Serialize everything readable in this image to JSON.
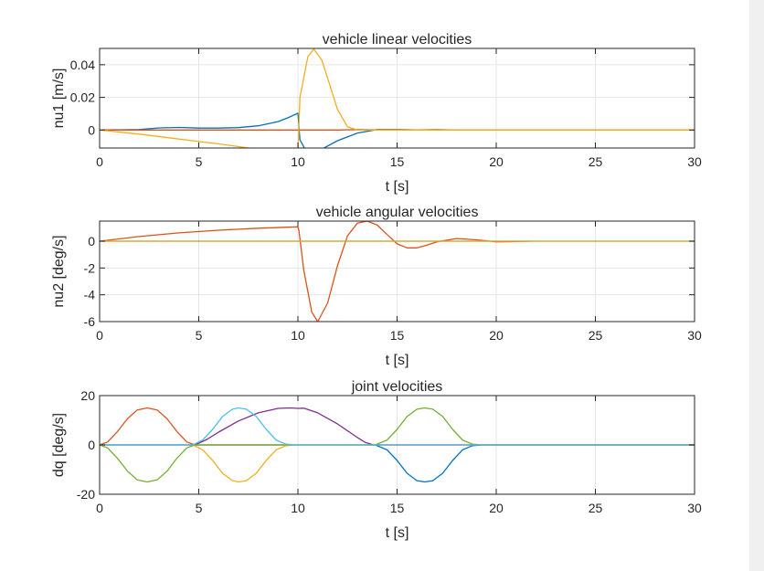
{
  "figure": {
    "background": "#ffffff",
    "window_background": "#f0f0f0",
    "axis_color": "#262626",
    "grid_color": "#e6e6e6"
  },
  "chart_data": [
    {
      "type": "line",
      "title": "vehicle linear velocities",
      "xlabel": "t [s]",
      "ylabel": "nu1 [m/s]",
      "xlim": [
        0,
        30
      ],
      "ylim": [
        -0.011,
        0.05
      ],
      "xticks": [
        0,
        5,
        10,
        15,
        20,
        25,
        30
      ],
      "xtick_labels": [
        "0",
        "5",
        "10",
        "15",
        "20",
        "25",
        "30"
      ],
      "yticks": [
        0,
        0.02,
        0.04
      ],
      "ytick_labels": [
        "0",
        "0.02",
        "0.04"
      ],
      "grid": true,
      "series": [
        {
          "color": "#0072BD",
          "x": [
            0,
            2,
            3,
            4,
            5,
            6,
            7,
            8,
            9,
            9.5,
            10,
            10.1,
            10.5,
            11,
            12,
            13,
            14,
            15,
            16,
            30
          ],
          "y": [
            0,
            0.0003,
            0.0013,
            0.0016,
            0.0012,
            0.0012,
            0.0015,
            0.0026,
            0.0052,
            0.0075,
            0.0103,
            -0.006,
            -0.0148,
            -0.013,
            -0.0065,
            -0.0018,
            0.0003,
            0.0003,
            0,
            0
          ]
        },
        {
          "color": "#D95319",
          "x": [
            0,
            12,
            13,
            14,
            15,
            16,
            17,
            18,
            30
          ],
          "y": [
            0,
            0,
            0.0003,
            0.0002,
            0.0003,
            0.0001,
            0.0003,
            0,
            0
          ]
        },
        {
          "color": "#EDB120",
          "x": [
            0,
            2,
            4,
            6,
            8,
            9,
            10,
            10.1,
            10.5,
            10.8,
            11.2,
            11.6,
            12,
            12.5,
            13,
            30
          ],
          "y": [
            0,
            -0.0025,
            -0.0055,
            -0.0085,
            -0.0118,
            -0.0135,
            -0.0148,
            0.02,
            0.045,
            0.0495,
            0.043,
            0.028,
            0.0125,
            0.002,
            0,
            0
          ]
        }
      ]
    },
    {
      "type": "line",
      "title": "vehicle angular velocities",
      "xlabel": "t [s]",
      "ylabel": "nu2 [deg/s]",
      "xlim": [
        0,
        30
      ],
      "ylim": [
        -6,
        1.5
      ],
      "xticks": [
        0,
        5,
        10,
        15,
        20,
        25,
        30
      ],
      "xtick_labels": [
        "0",
        "5",
        "10",
        "15",
        "20",
        "25",
        "30"
      ],
      "yticks": [
        -6,
        -4,
        -2,
        0
      ],
      "ytick_labels": [
        "-6",
        "-4",
        "-2",
        "0"
      ],
      "grid": true,
      "series": [
        {
          "color": "#0072BD",
          "x": [
            0,
            30
          ],
          "y": [
            0,
            0
          ]
        },
        {
          "color": "#D95319",
          "x": [
            0,
            2,
            4,
            6,
            8,
            10,
            10.05,
            10.3,
            10.7,
            11,
            11.5,
            12,
            12.5,
            13,
            13.5,
            14,
            14.5,
            15,
            15.5,
            16,
            16.5,
            17,
            18,
            19,
            20,
            21,
            21.7
          ],
          "y": [
            0,
            0.35,
            0.62,
            0.82,
            0.97,
            1.07,
            0.8,
            -2.2,
            -5.3,
            -6,
            -4.6,
            -1.8,
            0.4,
            1.35,
            1.5,
            1.2,
            0.5,
            -0.2,
            -0.5,
            -0.5,
            -0.3,
            -0.05,
            0.2,
            0.1,
            -0.05,
            -0.02,
            0
          ]
        },
        {
          "color": "#EDB120",
          "x": [
            0,
            30
          ],
          "y": [
            0,
            0
          ]
        }
      ]
    },
    {
      "type": "line",
      "title": "joint velocities",
      "xlabel": "t [s]",
      "ylabel": "dq [deg/s]",
      "xlim": [
        0,
        30
      ],
      "ylim": [
        -20,
        20
      ],
      "xticks": [
        0,
        5,
        10,
        15,
        20,
        25,
        30
      ],
      "xtick_labels": [
        "0",
        "5",
        "10",
        "15",
        "20",
        "25",
        "30"
      ],
      "yticks": [
        -20,
        0,
        20
      ],
      "ytick_labels": [
        "-20",
        "0",
        "20"
      ],
      "grid": true,
      "series": [
        {
          "color": "#0072BD",
          "x": [
            0,
            13.9,
            14.5,
            15,
            15.5,
            16,
            16.4,
            16.8,
            17.3,
            17.8,
            18.3,
            18.8,
            19.3,
            30
          ],
          "y": [
            0,
            0,
            -2,
            -6.3,
            -11.5,
            -14.5,
            -15,
            -14.5,
            -11.5,
            -6.3,
            -2,
            -0.3,
            0,
            0
          ]
        },
        {
          "color": "#D95319",
          "x": [
            0,
            0.4,
            0.9,
            1.4,
            1.9,
            2.4,
            2.9,
            3.4,
            3.9,
            4.4,
            4.8,
            30
          ],
          "y": [
            0,
            1.2,
            5.4,
            10.6,
            14.2,
            15,
            14.2,
            10.6,
            5.4,
            1.2,
            0,
            0
          ]
        },
        {
          "color": "#EDB120",
          "x": [
            0,
            4.7,
            5.2,
            5.7,
            6.2,
            6.7,
            7,
            7.4,
            7.9,
            8.4,
            8.9,
            9.4,
            9.9,
            30
          ],
          "y": [
            0,
            0,
            -2,
            -6.3,
            -11.5,
            -14.5,
            -15,
            -14.5,
            -11.5,
            -6.3,
            -2,
            -0.3,
            0,
            0
          ]
        },
        {
          "color": "#7E2F8E",
          "x": [
            0,
            4.8,
            5.4,
            6,
            7,
            8,
            9,
            9.6,
            10,
            10.3,
            11,
            12,
            13,
            13.4,
            13.8,
            30
          ],
          "y": [
            0,
            0,
            2.2,
            5.2,
            9.7,
            13,
            14.8,
            15,
            14.8,
            14.9,
            13,
            8.5,
            3,
            1,
            0,
            0
          ]
        },
        {
          "color": "#77AC30",
          "x": [
            0,
            0.4,
            0.9,
            1.4,
            1.9,
            2.4,
            2.9,
            3.4,
            3.9,
            4.4,
            4.8,
            13.9,
            14.5,
            15,
            15.5,
            16,
            16.4,
            16.8,
            17.3,
            17.8,
            18.3,
            18.8,
            19.3,
            30
          ],
          "y": [
            0,
            -1.2,
            -5.4,
            -10.6,
            -14.2,
            -15,
            -14.2,
            -10.6,
            -5.4,
            -1.2,
            0,
            0,
            2,
            6.3,
            11.5,
            14.5,
            15,
            14.5,
            11.5,
            6.3,
            2,
            0.3,
            0,
            0
          ]
        },
        {
          "color": "#4DBEEE",
          "x": [
            0,
            4.7,
            5.2,
            5.7,
            6.2,
            6.7,
            7,
            7.4,
            7.9,
            8.4,
            8.9,
            9.4,
            9.9,
            30
          ],
          "y": [
            0,
            0,
            2,
            6.3,
            11.5,
            14.5,
            15,
            14.5,
            11.5,
            6.3,
            2,
            0.3,
            0,
            0
          ]
        }
      ]
    }
  ]
}
